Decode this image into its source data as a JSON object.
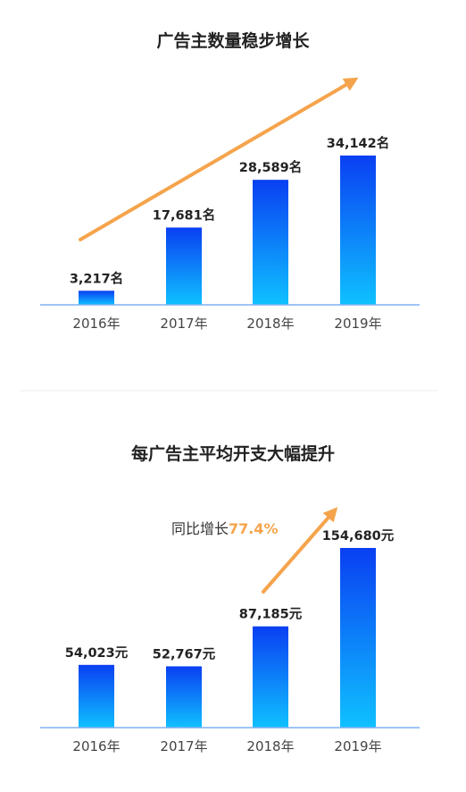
{
  "colors": {
    "bar_top": "#0a3ff2",
    "bar_bottom": "#0fc1ff",
    "arrow": "#f5a44c",
    "axis": "#7fb0f0",
    "divider": "#eeeeee",
    "highlight": "#f5a44c"
  },
  "chart_data": [
    {
      "type": "bar",
      "title": "广告主数量稳步增长",
      "categories": [
        "2016年",
        "2017年",
        "2018年",
        "2019年"
      ],
      "values": [
        3217,
        17681,
        28589,
        34142
      ],
      "value_labels": [
        "3,217名",
        "17,681名",
        "28,589名",
        "34,142名"
      ],
      "ylim": [
        0,
        34142
      ],
      "grid": false
    },
    {
      "type": "bar",
      "title": "每广告主平均开支大幅提升",
      "categories": [
        "2016年",
        "2017年",
        "2018年",
        "2019年"
      ],
      "values": [
        54023,
        52767,
        87185,
        154680
      ],
      "value_labels": [
        "54,023元",
        "52,767元",
        "87,185元",
        "154,680元"
      ],
      "ylim": [
        0,
        154680
      ],
      "grid": false,
      "annotation": {
        "text": "同比增长",
        "highlight": "77.4%"
      }
    }
  ]
}
